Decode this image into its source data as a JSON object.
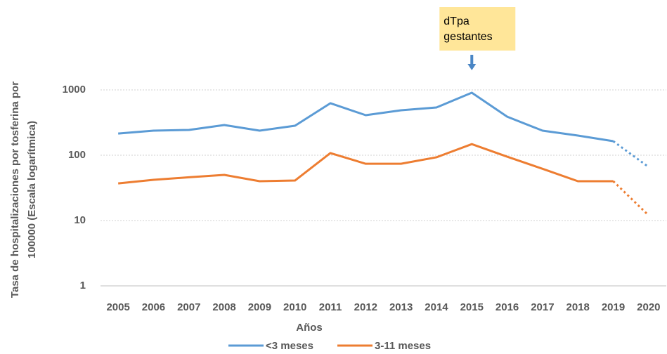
{
  "chart_data": {
    "type": "line",
    "ylabel": [
      "Tasa de hospitalizaciones por tosferina por",
      "100000 (Escala logarítmica)"
    ],
    "xlabel": "Años",
    "categories": [
      "2005",
      "2006",
      "2007",
      "2008",
      "2009",
      "2010",
      "2011",
      "2012",
      "2013",
      "2014",
      "2015",
      "2016",
      "2017",
      "2018",
      "2019",
      "2020"
    ],
    "series": [
      {
        "name": "<3 meses",
        "color": "#5b9bd5",
        "values": [
          215,
          238,
          244,
          290,
          238,
          283,
          625,
          410,
          488,
          538,
          906,
          389,
          238,
          200,
          164,
          66
        ]
      },
      {
        "name": "3-11 meses",
        "color": "#ed7d31",
        "values": [
          37,
          42,
          46,
          50,
          40,
          41,
          108,
          74,
          74,
          93,
          148,
          95,
          62,
          40,
          40,
          12
        ]
      }
    ],
    "dotted_last_segments": 1,
    "log_scale": true,
    "ylim": [
      1,
      1000
    ],
    "yticks": [
      1,
      10,
      100,
      1000
    ],
    "grid": true,
    "legend": "bottom",
    "annotation": {
      "lines": [
        "dTpa",
        "gestantes"
      ],
      "category": "2015",
      "color": "#ffe699",
      "arrow_color": "#4a86c5"
    }
  }
}
